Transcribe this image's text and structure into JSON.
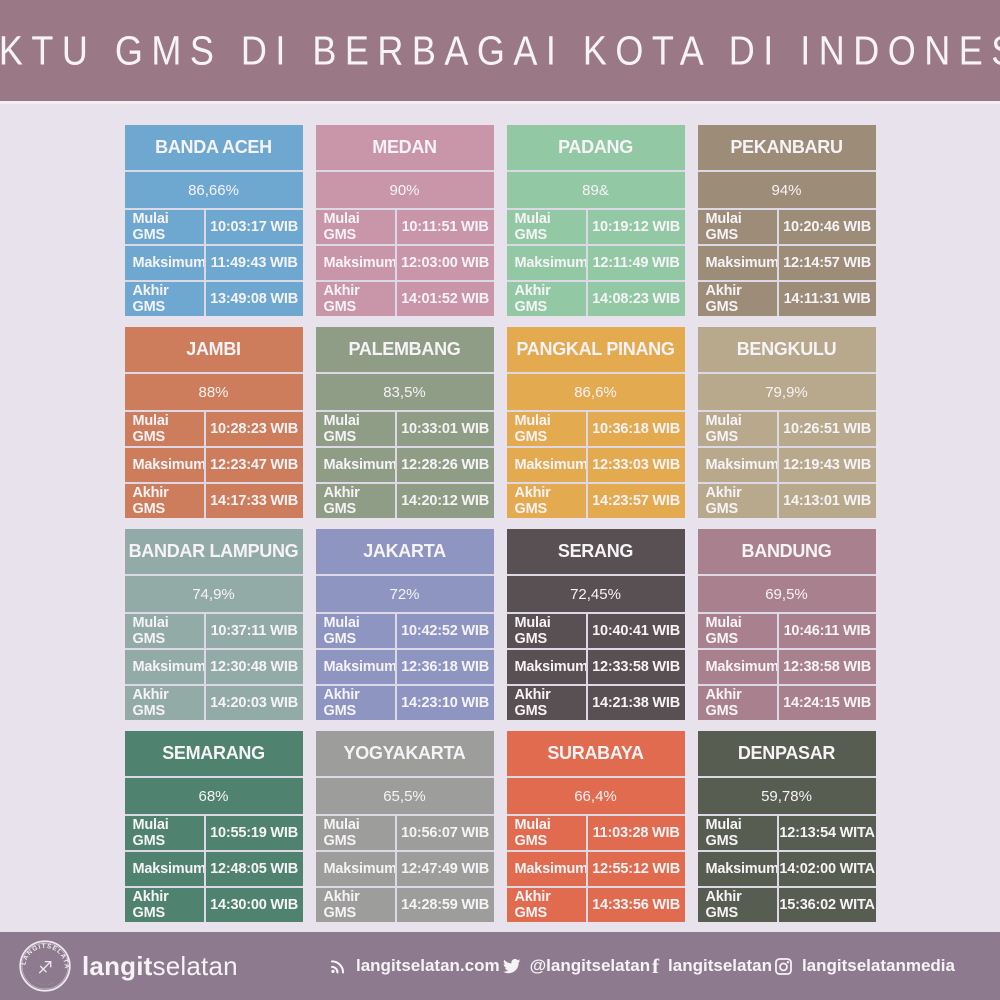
{
  "title": "WAKTU GMS DI BERBAGAI KOTA DI INDONESIA",
  "labels": {
    "start": "Mulai GMS",
    "max": "Maksimum",
    "end": "Akhir GMS"
  },
  "cities": [
    {
      "name": "BANDA ACEH",
      "pct": "86,66%",
      "start": "10:03:17 WIB",
      "max": "11:49:43 WIB",
      "end": "13:49:08 WIB",
      "color": "#6ea8d1"
    },
    {
      "name": "MEDAN",
      "pct": "90%",
      "start": "10:11:51 WIB",
      "max": "12:03:00 WIB",
      "end": "14:01:52 WIB",
      "color": "#c995a9"
    },
    {
      "name": "PADANG",
      "pct": "89&",
      "start": "10:19:12 WIB",
      "max": "12:11:49 WIB",
      "end": "14:08:23 WIB",
      "color": "#93c8a5"
    },
    {
      "name": "PEKANBARU",
      "pct": "94%",
      "start": "10:20:46 WIB",
      "max": "12:14:57 WIB",
      "end": "14:11:31 WIB",
      "color": "#9c8c78"
    },
    {
      "name": "JAMBI",
      "pct": "88%",
      "start": "10:28:23 WIB",
      "max": "12:23:47 WIB",
      "end": "14:17:33 WIB",
      "color": "#cd7d5c"
    },
    {
      "name": "PALEMBANG",
      "pct": "83,5%",
      "start": "10:33:01 WIB",
      "max": "12:28:26 WIB",
      "end": "14:20:12 WIB",
      "color": "#8f9d86"
    },
    {
      "name": "PANGKAL PINANG",
      "pct": "86,6%",
      "start": "10:36:18 WIB",
      "max": "12:33:03 WIB",
      "end": "14:23:57 WIB",
      "color": "#e4aa50"
    },
    {
      "name": "BENGKULU",
      "pct": "79,9%",
      "start": "10:26:51 WIB",
      "max": "12:19:43 WIB",
      "end": "14:13:01 WIB",
      "color": "#b8a98d"
    },
    {
      "name": "BANDAR LAMPUNG",
      "pct": "74,9%",
      "start": "10:37:11 WIB",
      "max": "12:30:48 WIB",
      "end": "14:20:03 WIB",
      "color": "#93aba6"
    },
    {
      "name": "JAKARTA",
      "pct": "72%",
      "start": "10:42:52 WIB",
      "max": "12:36:18 WIB",
      "end": "14:23:10 WIB",
      "color": "#8e95c0"
    },
    {
      "name": "SERANG",
      "pct": "72,45%",
      "start": "10:40:41 WIB",
      "max": "12:33:58 WIB",
      "end": "14:21:38 WIB",
      "color": "#585052"
    },
    {
      "name": "BANDUNG",
      "pct": "69,5%",
      "start": "10:46:11 WIB",
      "max": "12:38:58 WIB",
      "end": "14:24:15 WIB",
      "color": "#a9818e"
    },
    {
      "name": "SEMARANG",
      "pct": "68%",
      "start": "10:55:19 WIB",
      "max": "12:48:05 WIB",
      "end": "14:30:00 WIB",
      "color": "#4f8370"
    },
    {
      "name": "YOGYAKARTA",
      "pct": "65,5%",
      "start": "10:56:07 WIB",
      "max": "12:47:49 WIB",
      "end": "14:28:59 WIB",
      "color": "#9d9d9b"
    },
    {
      "name": "SURABAYA",
      "pct": "66,4%",
      "start": "11:03:28 WIB",
      "max": "12:55:12 WIB",
      "end": "14:33:56 WIB",
      "color": "#e16b4f"
    },
    {
      "name": "DENPASAR",
      "pct": "59,78%",
      "start": "12:13:54 WITA",
      "max": "14:02:00 WITA",
      "end": "15:36:02 WITA",
      "color": "#585d52"
    }
  ],
  "footer": {
    "logo_arc_text": "LANGITSELATAN",
    "logo_bottom_marks": "·  ·  ·  ·  ·  ·  ·  ·  ·  ·",
    "brand_bold": "langit",
    "brand_light": "selatan",
    "website": "langitselatan.com",
    "twitter": "@langitselatan",
    "facebook": "langitselatan",
    "instagram": "langitselatanmedia"
  },
  "colors": {
    "page_bg": "#e7e2ec",
    "header_bg": "#9b7885",
    "footer_bg": "#8e7a8e",
    "divider": "#dcd8e6",
    "text_light": "#f6f3f6"
  }
}
